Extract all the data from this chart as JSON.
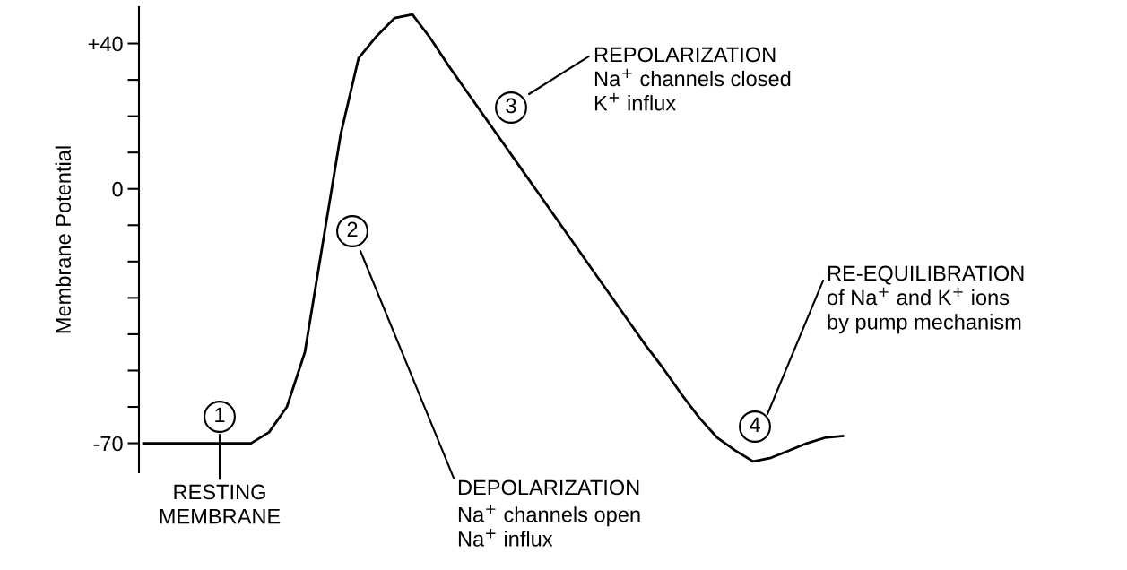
{
  "chart_data": {
    "type": "line",
    "ylabel": "Membrane Potential",
    "categories": [
      null,
      null,
      null,
      null,
      null,
      null,
      null,
      null,
      null,
      null,
      null,
      null,
      null,
      null,
      null,
      null,
      null,
      null,
      null,
      null,
      null,
      null,
      null,
      null,
      null,
      null,
      null,
      null,
      null,
      null,
      null,
      null,
      null,
      null,
      null,
      null,
      null,
      null,
      null,
      null
    ],
    "series": [
      {
        "color": "#000000",
        "values": [
          -70,
          -70,
          -70,
          -70,
          -70,
          -70,
          -70,
          -67,
          -60,
          -45,
          -15,
          15,
          36,
          42,
          47,
          48,
          41.5,
          34,
          27,
          20,
          13,
          6,
          -1,
          -8,
          -15,
          -22,
          -29,
          -36,
          -43,
          -49.5,
          -56.5,
          -63,
          -68.5,
          -72,
          -75,
          -74,
          -72,
          -70,
          -68.5,
          -68
        ]
      }
    ],
    "ylim": [
      -78,
      50
    ],
    "yticks": [
      {
        "value": -70,
        "label": "-70"
      },
      {
        "value": -60,
        "label": null
      },
      {
        "value": -50,
        "label": null
      },
      {
        "value": -40,
        "label": null
      },
      {
        "value": -30,
        "label": null
      },
      {
        "value": -20,
        "label": null
      },
      {
        "value": -10,
        "label": null
      },
      0,
      {
        "value": 10,
        "label": null
      },
      {
        "value": 20,
        "label": null
      },
      {
        "value": 30,
        "label": null
      },
      {
        "value": 40,
        "label": "+40"
      }
    ],
    "tick_labels": "y",
    "marker": "none",
    "line_style": "solid",
    "annotations": [
      "1",
      "RESTING\nMEMBRANE",
      "2",
      "DEPOLARIZATION\nNa$^{+}$ channels open\nNa$^{+}$ influx",
      "3",
      "REPOLARIZATION\nNa$^{+}$ channels closed\nK$^{+}$ influx",
      "4",
      "RE-EQUILIBRATION\nof Na$^{+}$ and K$^{+}$ ions\nby pump mechanism"
    ]
  }
}
